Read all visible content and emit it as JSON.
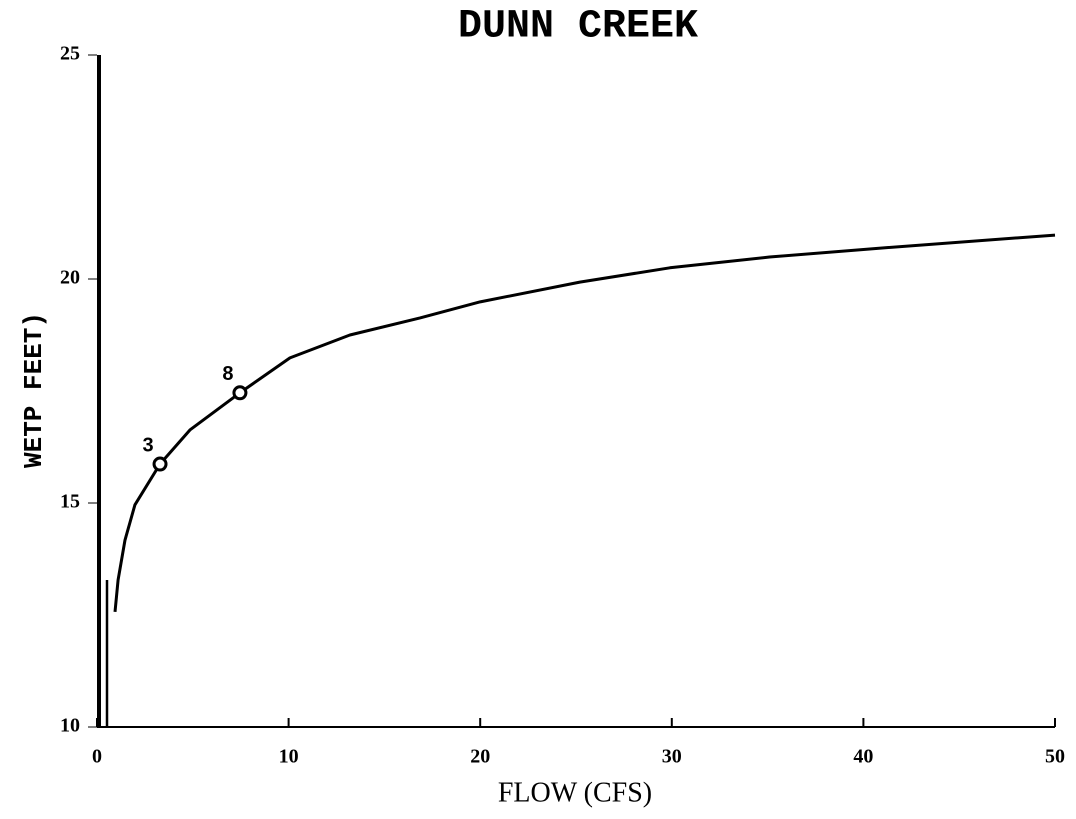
{
  "chart_data": {
    "type": "line",
    "title": "DUNN CREEK",
    "x_label": "FLOW (CFS)",
    "y_label": "WETP FEET)",
    "x": [
      0.94,
      1.1,
      1.46,
      1.98,
      3.29,
      4.85,
      7.46,
      10.07,
      13.2,
      16.86,
      20,
      25.2,
      29.9,
      35.1,
      40.9,
      50
    ],
    "series": [
      {
        "color": "#000000",
        "values": [
          12.57,
          13.28,
          14.17,
          14.96,
          15.87,
          16.63,
          17.46,
          18.24,
          18.75,
          19.13,
          19.49,
          19.93,
          20.25,
          20.49,
          20.69,
          20.98
        ]
      }
    ],
    "annotations": [
      {
        "text": "3",
        "x": 3.29,
        "y": 15.87
      },
      {
        "text": "8",
        "x": 7.46,
        "y": 17.46
      }
    ],
    "xlim": [
      0,
      50
    ],
    "xticks": [
      0,
      10,
      20,
      30,
      40,
      50
    ],
    "ylim": [
      10,
      25
    ],
    "yticks": [
      10,
      15,
      20,
      25
    ],
    "grid": false
  }
}
